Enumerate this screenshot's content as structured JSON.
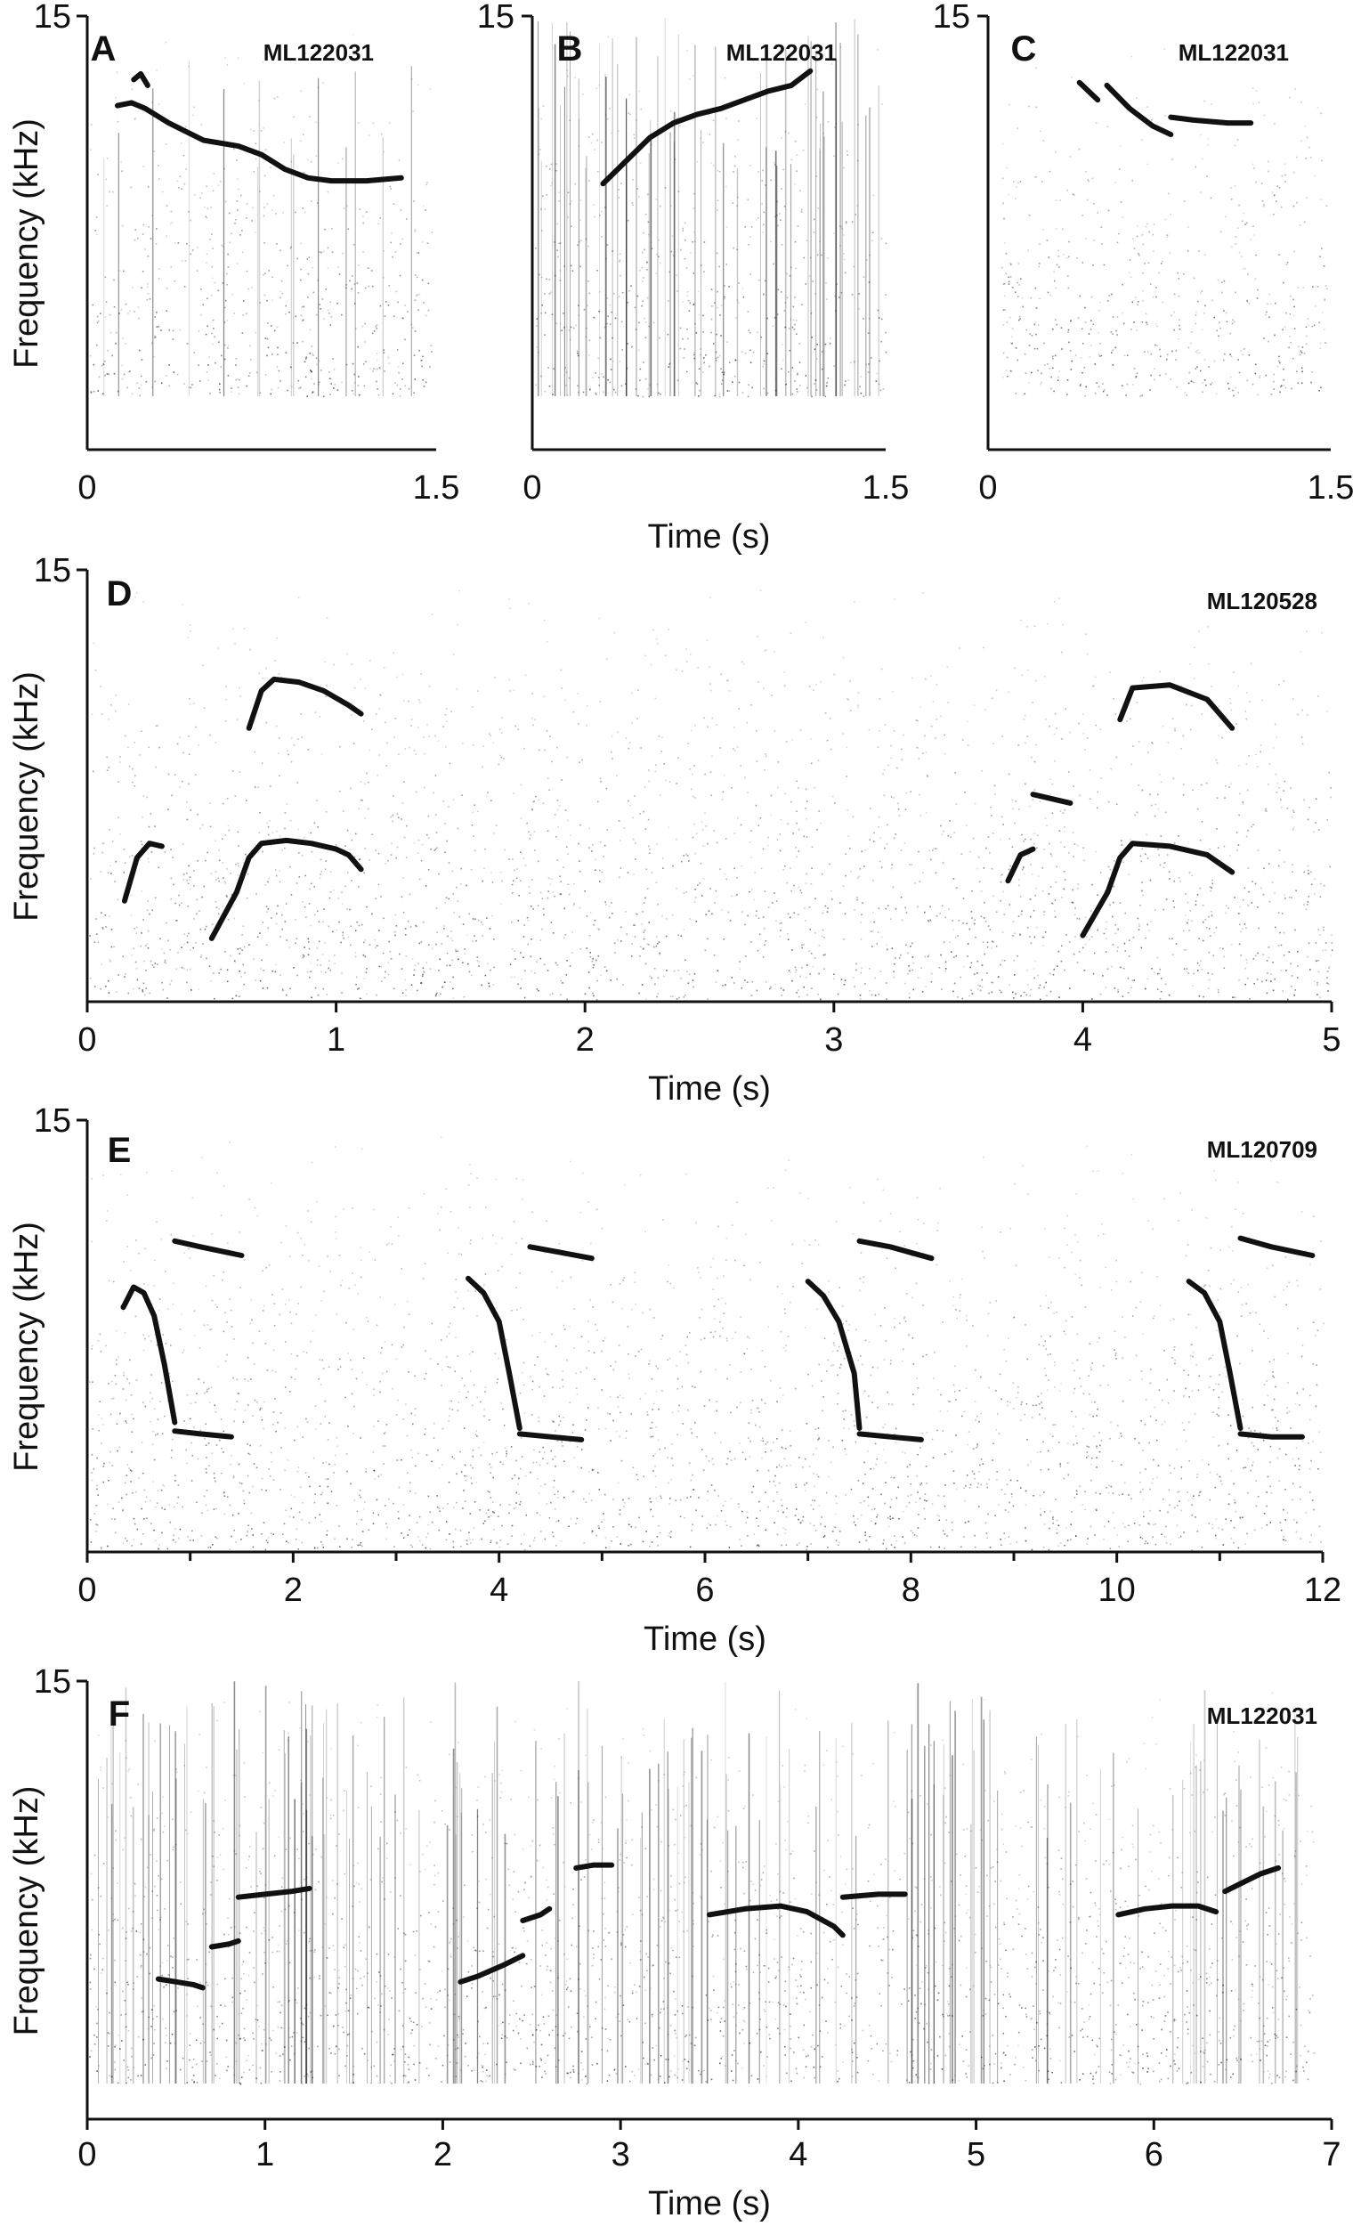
{
  "figure": {
    "panels": [
      {
        "letter": "A",
        "recording_id": "ML122031",
        "ylabel": "Frequency (kHz)",
        "xlabel": ""
      },
      {
        "letter": "B",
        "recording_id": "ML122031",
        "ylabel": "",
        "xlabel": "Time (s)"
      },
      {
        "letter": "C",
        "recording_id": "ML122031",
        "ylabel": "",
        "xlabel": ""
      },
      {
        "letter": "D",
        "recording_id": "ML120528",
        "ylabel": "Frequency (kHz)",
        "xlabel": "Time (s)"
      },
      {
        "letter": "E",
        "recording_id": "ML120709",
        "ylabel": "Frequency (kHz)",
        "xlabel": "Time (s)"
      },
      {
        "letter": "F",
        "recording_id": "ML122031",
        "ylabel": "Frequency (kHz)",
        "xlabel": "Time (s)"
      }
    ],
    "colors": {
      "ink": "#111111",
      "background": "#ffffff"
    }
  },
  "chart_data": [
    {
      "panel": "A",
      "type": "heatmap",
      "xlim": [
        0,
        1.5
      ],
      "ylim": [
        0,
        15
      ],
      "x_ticks": [
        "0",
        "1.5"
      ],
      "y_ticks": [
        "15"
      ],
      "series": [
        {
          "x": [
            0.13,
            0.19,
            0.25,
            0.35,
            0.5,
            0.65,
            0.75,
            0.85,
            0.95,
            1.05,
            1.2,
            1.35
          ],
          "y": [
            11.9,
            12.0,
            11.8,
            11.3,
            10.7,
            10.5,
            10.2,
            9.7,
            9.4,
            9.3,
            9.3,
            9.4
          ]
        },
        {
          "x": [
            0.2,
            0.23,
            0.26
          ],
          "y": [
            12.8,
            13.0,
            12.6
          ]
        }
      ]
    },
    {
      "panel": "B",
      "type": "heatmap",
      "xlim": [
        0,
        1.5
      ],
      "ylim": [
        0,
        15
      ],
      "x_ticks": [
        "0",
        "1.5"
      ],
      "y_ticks": [
        "15"
      ],
      "series": [
        {
          "x": [
            0.3,
            0.4,
            0.5,
            0.6,
            0.7,
            0.8,
            0.9,
            1.0,
            1.1,
            1.18
          ],
          "y": [
            9.2,
            10.0,
            10.8,
            11.3,
            11.6,
            11.8,
            12.1,
            12.4,
            12.6,
            13.1
          ]
        }
      ]
    },
    {
      "panel": "C",
      "type": "heatmap",
      "xlim": [
        0,
        1.5
      ],
      "ylim": [
        0,
        15
      ],
      "x_ticks": [
        "0",
        "1.5"
      ],
      "y_ticks": [
        "15"
      ],
      "series": [
        {
          "x": [
            0.4,
            0.48
          ],
          "y": [
            12.7,
            12.1
          ]
        },
        {
          "x": [
            0.52,
            0.62,
            0.72,
            0.8
          ],
          "y": [
            12.6,
            11.8,
            11.2,
            10.9
          ]
        },
        {
          "x": [
            0.8,
            0.9,
            1.05,
            1.15
          ],
          "y": [
            11.5,
            11.4,
            11.3,
            11.3
          ]
        }
      ]
    },
    {
      "panel": "D",
      "type": "heatmap",
      "xlim": [
        0,
        5
      ],
      "ylim": [
        0,
        15
      ],
      "x_ticks": [
        "0",
        "1",
        "2",
        "3",
        "4",
        "5"
      ],
      "y_ticks": [
        "15"
      ],
      "series": [
        {
          "x": [
            0.15,
            0.2,
            0.25,
            0.3
          ],
          "y": [
            3.5,
            5.0,
            5.5,
            5.4
          ]
        },
        {
          "x": [
            0.5,
            0.6,
            0.65,
            0.7,
            0.8,
            0.9,
            1.0,
            1.05,
            1.1
          ],
          "y": [
            2.2,
            3.8,
            5.0,
            5.5,
            5.6,
            5.5,
            5.3,
            5.1,
            4.6
          ]
        },
        {
          "x": [
            0.65,
            0.7,
            0.75,
            0.85,
            0.95,
            1.05,
            1.1
          ],
          "y": [
            9.5,
            10.8,
            11.2,
            11.1,
            10.8,
            10.3,
            10.0
          ]
        },
        {
          "x": [
            3.7,
            3.75,
            3.8
          ],
          "y": [
            4.2,
            5.1,
            5.3
          ]
        },
        {
          "x": [
            3.8,
            3.9,
            3.95
          ],
          "y": [
            7.2,
            7.0,
            6.9
          ]
        },
        {
          "x": [
            4.0,
            4.1,
            4.15,
            4.2,
            4.35,
            4.5,
            4.6
          ],
          "y": [
            2.3,
            3.8,
            5.0,
            5.5,
            5.4,
            5.1,
            4.5
          ]
        },
        {
          "x": [
            4.15,
            4.2,
            4.35,
            4.5,
            4.6
          ],
          "y": [
            9.8,
            10.9,
            11.0,
            10.5,
            9.5
          ]
        }
      ]
    },
    {
      "panel": "E",
      "type": "heatmap",
      "xlim": [
        0,
        12
      ],
      "ylim": [
        0,
        15
      ],
      "x_ticks": [
        "0",
        "2",
        "4",
        "6",
        "8",
        "10",
        "12"
      ],
      "y_ticks": [
        "15"
      ],
      "series": [
        {
          "x": [
            0.35,
            0.45,
            0.55,
            0.65,
            0.75,
            0.85
          ],
          "y": [
            8.5,
            9.2,
            9.0,
            8.2,
            6.5,
            4.5
          ]
        },
        {
          "x": [
            0.85,
            1.1,
            1.4
          ],
          "y": [
            4.2,
            4.1,
            4.0
          ]
        },
        {
          "x": [
            0.85,
            1.1,
            1.5
          ],
          "y": [
            10.8,
            10.6,
            10.3
          ]
        },
        {
          "x": [
            3.7,
            3.85,
            4.0,
            4.1,
            4.2
          ],
          "y": [
            9.5,
            9.0,
            8.0,
            6.2,
            4.3
          ]
        },
        {
          "x": [
            4.2,
            4.5,
            4.8
          ],
          "y": [
            4.1,
            4.0,
            3.9
          ]
        },
        {
          "x": [
            4.3,
            4.6,
            4.9
          ],
          "y": [
            10.6,
            10.4,
            10.2
          ]
        },
        {
          "x": [
            7.0,
            7.15,
            7.3,
            7.45,
            7.5
          ],
          "y": [
            9.4,
            8.9,
            8.0,
            6.2,
            4.3
          ]
        },
        {
          "x": [
            7.5,
            7.8,
            8.1
          ],
          "y": [
            4.1,
            4.0,
            3.9
          ]
        },
        {
          "x": [
            7.5,
            7.8,
            8.2
          ],
          "y": [
            10.8,
            10.6,
            10.2
          ]
        },
        {
          "x": [
            10.7,
            10.85,
            11.0,
            11.1,
            11.2
          ],
          "y": [
            9.4,
            9.0,
            8.0,
            6.2,
            4.3
          ]
        },
        {
          "x": [
            11.2,
            11.5,
            11.8
          ],
          "y": [
            4.1,
            4.0,
            4.0
          ]
        },
        {
          "x": [
            11.2,
            11.5,
            11.9
          ],
          "y": [
            10.9,
            10.6,
            10.3
          ]
        }
      ]
    },
    {
      "panel": "F",
      "type": "heatmap",
      "xlim": [
        0,
        7
      ],
      "ylim": [
        0,
        15
      ],
      "x_ticks": [
        "0",
        "1",
        "2",
        "3",
        "4",
        "5",
        "6",
        "7"
      ],
      "y_ticks": [
        "15"
      ],
      "series": [
        {
          "x": [
            0.4,
            0.5,
            0.6,
            0.65
          ],
          "y": [
            4.8,
            4.7,
            4.6,
            4.5
          ]
        },
        {
          "x": [
            0.7,
            0.8,
            0.85
          ],
          "y": [
            5.9,
            6.0,
            6.1
          ]
        },
        {
          "x": [
            0.85,
            1.0,
            1.15,
            1.25
          ],
          "y": [
            7.6,
            7.7,
            7.8,
            7.9
          ]
        },
        {
          "x": [
            2.1,
            2.2,
            2.35,
            2.45
          ],
          "y": [
            4.7,
            4.9,
            5.3,
            5.6
          ]
        },
        {
          "x": [
            2.45,
            2.55,
            2.6
          ],
          "y": [
            6.8,
            7.0,
            7.2
          ]
        },
        {
          "x": [
            2.75,
            2.85,
            2.95
          ],
          "y": [
            8.6,
            8.7,
            8.7
          ]
        },
        {
          "x": [
            3.5,
            3.7,
            3.9,
            4.05,
            4.2,
            4.25
          ],
          "y": [
            7.0,
            7.2,
            7.3,
            7.1,
            6.6,
            6.3
          ]
        },
        {
          "x": [
            4.25,
            4.45,
            4.6
          ],
          "y": [
            7.6,
            7.7,
            7.7
          ]
        },
        {
          "x": [
            5.8,
            5.95,
            6.1,
            6.25,
            6.35
          ],
          "y": [
            7.0,
            7.2,
            7.3,
            7.3,
            7.1
          ]
        },
        {
          "x": [
            6.4,
            6.5,
            6.6,
            6.7
          ],
          "y": [
            7.8,
            8.1,
            8.4,
            8.6
          ]
        }
      ]
    }
  ]
}
